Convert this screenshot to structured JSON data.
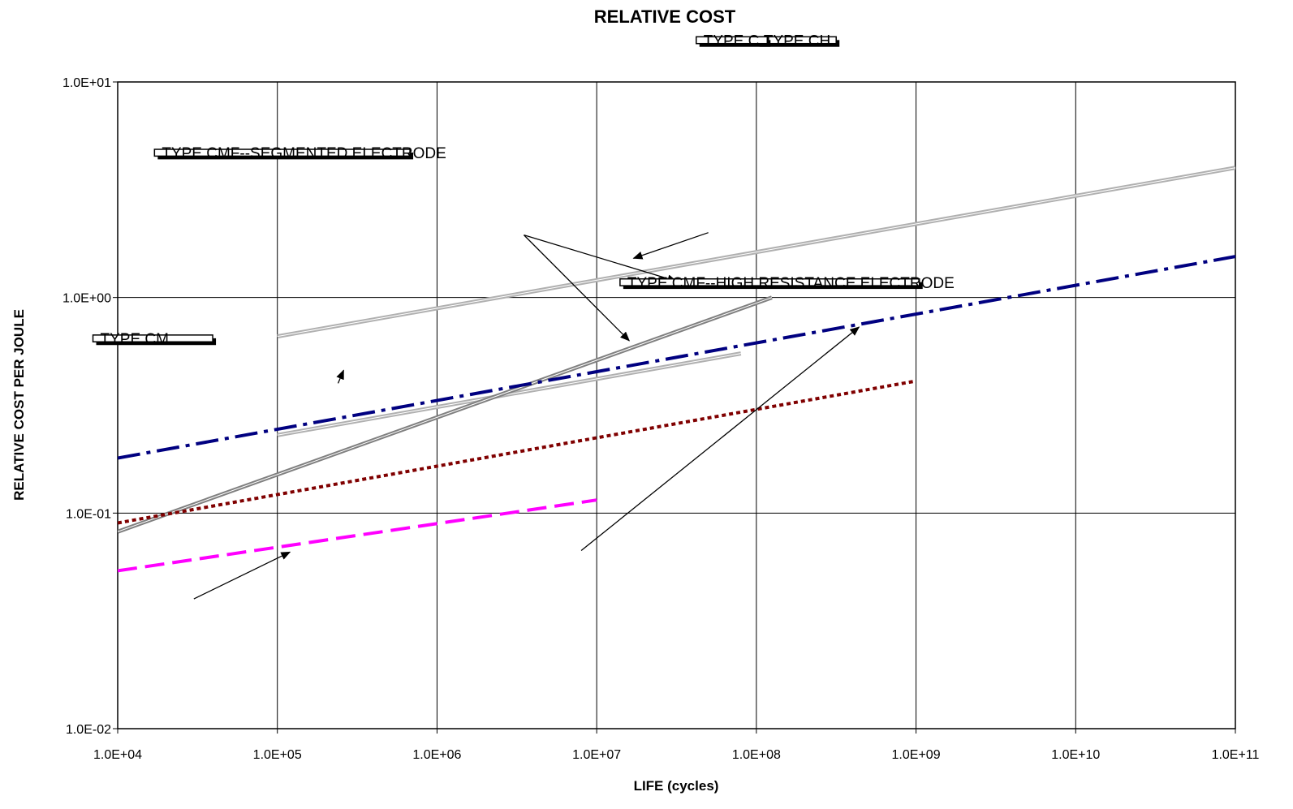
{
  "chart_data": {
    "type": "line",
    "title": "RELATIVE COST",
    "xlabel": "LIFE (cycles)",
    "ylabel": "RELATIVE COST PER JOULE",
    "x_scale": "log",
    "y_scale": "log",
    "xlim": [
      10000,
      100000000000
    ],
    "ylim": [
      0.01,
      10
    ],
    "grid": true,
    "x_tick_labels": [
      "1.0E+04",
      "1.0E+05",
      "1.0E+06",
      "1.0E+07",
      "1.0E+08",
      "1.0E+09",
      "1.0E+10",
      "1.0E+11"
    ],
    "x_tick_values": [
      10000,
      100000,
      1000000,
      10000000,
      100000000,
      1000000000,
      10000000000,
      100000000000
    ],
    "y_tick_labels": [
      "1.0E+01",
      "1.0E+00",
      "1.0E-01",
      "1.0E-02"
    ],
    "y_tick_values": [
      10,
      1,
      0.1,
      0.01
    ],
    "series": [
      {
        "key": "ch_upper",
        "color": "#b0b0b0",
        "style": "double",
        "x": [
          100000,
          100000000000
        ],
        "y": [
          0.66,
          4.0
        ]
      },
      {
        "key": "ch_lower",
        "color": "#b0b0b0",
        "style": "double",
        "x": [
          100000,
          80000000
        ],
        "y": [
          0.23,
          0.55
        ]
      },
      {
        "key": "c",
        "color": "#808080",
        "style": "double",
        "x": [
          10000,
          125000000
        ],
        "y": [
          0.082,
          1.0
        ]
      },
      {
        "key": "cmf_segmented",
        "color": "#000080",
        "style": "dashdot",
        "x": [
          10000,
          100000000000
        ],
        "y": [
          0.18,
          1.55
        ]
      },
      {
        "key": "cmf_high_resistance",
        "color": "#800000",
        "style": "dotted",
        "x": [
          10000,
          1000000000
        ],
        "y": [
          0.09,
          0.41
        ]
      },
      {
        "key": "cm",
        "color": "#ff00ff",
        "style": "dashed",
        "x": [
          10000,
          10000000
        ],
        "y": [
          0.054,
          0.115
        ]
      }
    ],
    "annotations": [
      {
        "key": "ch",
        "text": "TYPE CH",
        "box": [
          100000000,
          16.2
        ],
        "box_w": 1.0,
        "box_h": 0.063,
        "arrows": [
          [
            [
              3500000,
              1.95
            ],
            [
              31600000,
              1.19
            ]
          ],
          [
            [
              3500000,
              1.95
            ],
            [
              16000000,
              0.63
            ]
          ]
        ]
      },
      {
        "key": "c",
        "text": "TYPE C",
        "box": [
          42000000,
          16.2
        ],
        "box_w": 0.89,
        "box_h": 0.063,
        "arrows": [
          [
            [
              50000000,
              2.0
            ],
            [
              17000000,
              1.52
            ]
          ]
        ]
      },
      {
        "key": "cmf_segmented",
        "text": "TYPE CMF--SEGMENTED ELECTRODE",
        "box": [
          17000,
          4.87
        ],
        "box_w": 3.2,
        "box_h": 0.063,
        "arrows": [
          [
            [
              240000,
              0.4
            ],
            [
              260000,
              0.46
            ]
          ]
        ]
      },
      {
        "key": "cmf_high_resistance",
        "text": "TYPE CMF--HIGH RESISTANCE ELECTRODE",
        "box": [
          14000000,
          1.22
        ],
        "box_w": 3.75,
        "box_h": 0.063,
        "arrows": [
          [
            [
              8000000,
              0.067
            ],
            [
              440000000,
              0.73
            ]
          ]
        ]
      },
      {
        "key": "cm",
        "text": "TYPE CM",
        "box": [
          7000,
          0.67
        ],
        "box_w": 1.5,
        "box_h": 0.063,
        "arrows": [
          [
            [
              30000,
              0.04
            ],
            [
              120000,
              0.066
            ]
          ]
        ]
      }
    ]
  }
}
